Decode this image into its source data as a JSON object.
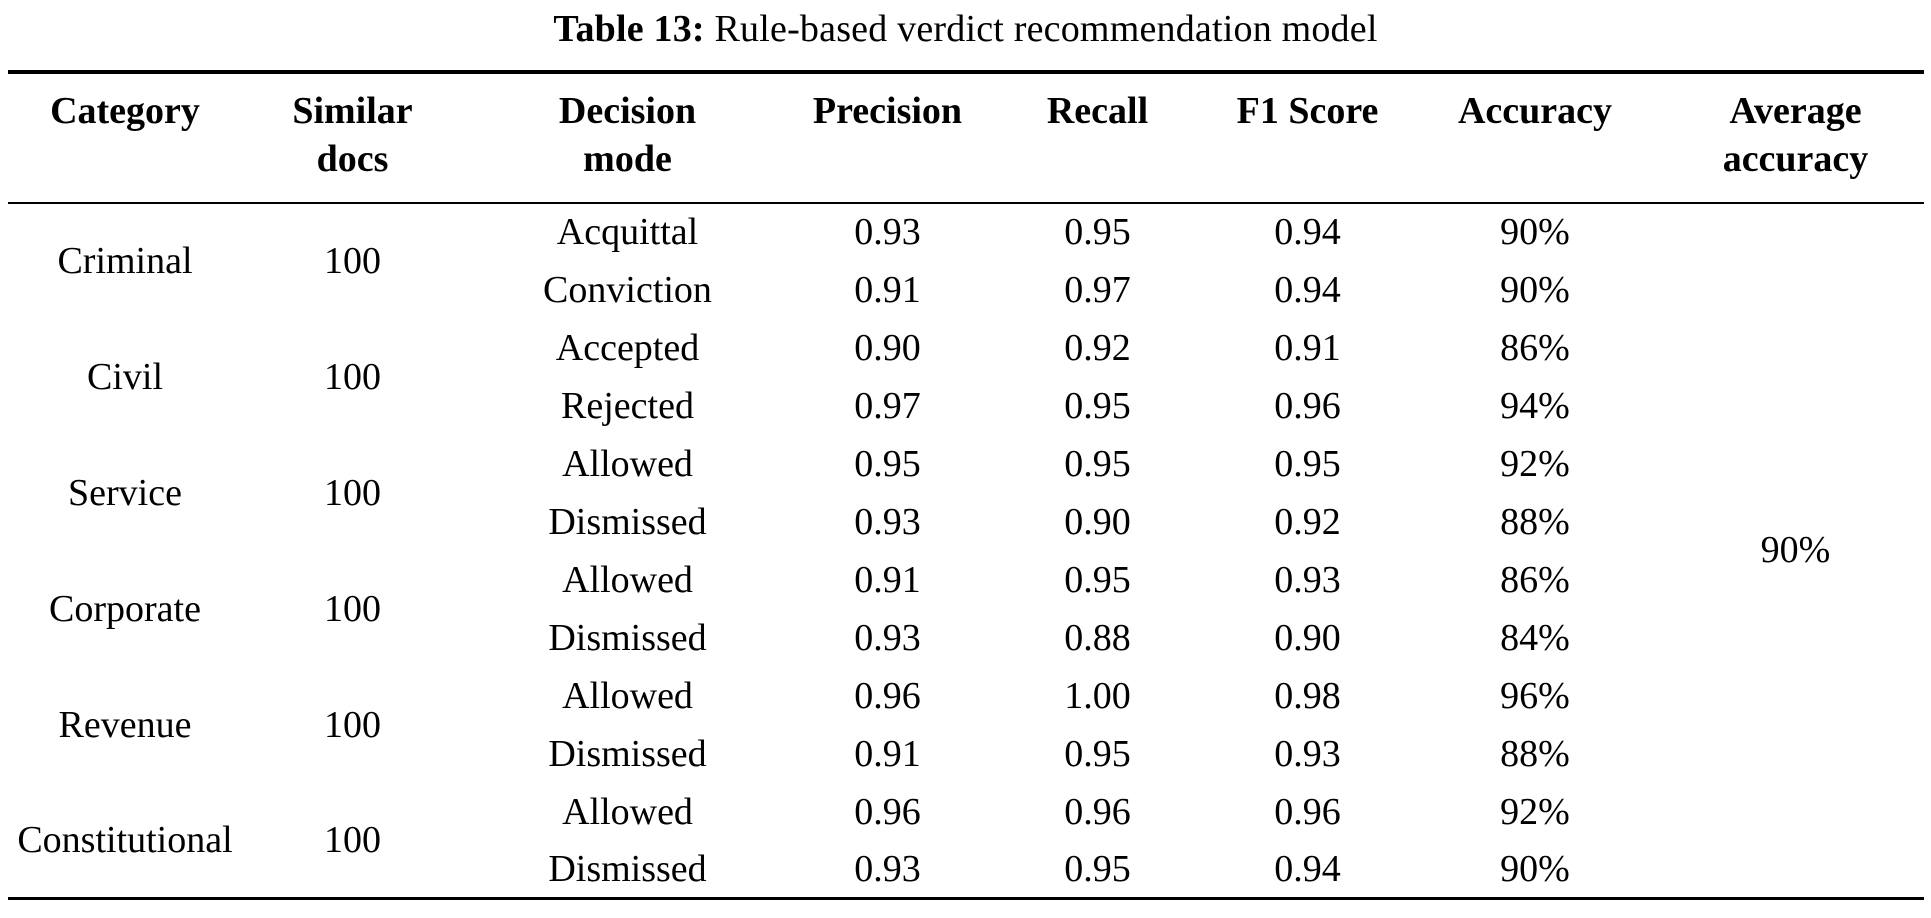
{
  "caption": {
    "label": "Table 13:",
    "text": "Rule-based verdict recommendation model"
  },
  "table": {
    "headers": [
      {
        "line1": "Category",
        "line2": ""
      },
      {
        "line1": "Similar",
        "line2": "docs"
      },
      {
        "line1": "Decision",
        "line2": "mode"
      },
      {
        "line1": "Precision",
        "line2": ""
      },
      {
        "line1": "Recall",
        "line2": ""
      },
      {
        "line1": "F1 Score",
        "line2": ""
      },
      {
        "line1": "Accuracy",
        "line2": ""
      },
      {
        "line1": "Average",
        "line2": "accuracy"
      }
    ],
    "groups": [
      {
        "category": "Criminal",
        "docs": "100",
        "rows": [
          {
            "decision": "Acquittal",
            "precision": "0.93",
            "recall": "0.95",
            "f1": "0.94",
            "accuracy": "90%"
          },
          {
            "decision": "Conviction",
            "precision": "0.91",
            "recall": "0.97",
            "f1": "0.94",
            "accuracy": "90%"
          }
        ]
      },
      {
        "category": "Civil",
        "docs": "100",
        "rows": [
          {
            "decision": "Accepted",
            "precision": "0.90",
            "recall": "0.92",
            "f1": "0.91",
            "accuracy": "86%"
          },
          {
            "decision": "Rejected",
            "precision": "0.97",
            "recall": "0.95",
            "f1": "0.96",
            "accuracy": "94%"
          }
        ]
      },
      {
        "category": "Service",
        "docs": "100",
        "rows": [
          {
            "decision": "Allowed",
            "precision": "0.95",
            "recall": "0.95",
            "f1": "0.95",
            "accuracy": "92%"
          },
          {
            "decision": "Dismissed",
            "precision": "0.93",
            "recall": "0.90",
            "f1": "0.92",
            "accuracy": "88%"
          }
        ]
      },
      {
        "category": "Corporate",
        "docs": "100",
        "rows": [
          {
            "decision": "Allowed",
            "precision": "0.91",
            "recall": "0.95",
            "f1": "0.93",
            "accuracy": "86%"
          },
          {
            "decision": "Dismissed",
            "precision": "0.93",
            "recall": "0.88",
            "f1": "0.90",
            "accuracy": "84%"
          }
        ]
      },
      {
        "category": "Revenue",
        "docs": "100",
        "rows": [
          {
            "decision": "Allowed",
            "precision": "0.96",
            "recall": "1.00",
            "f1": "0.98",
            "accuracy": "96%"
          },
          {
            "decision": "Dismissed",
            "precision": "0.91",
            "recall": "0.95",
            "f1": "0.93",
            "accuracy": "88%"
          }
        ]
      },
      {
        "category": "Constitutional",
        "docs": "100",
        "rows": [
          {
            "decision": "Allowed",
            "precision": "0.96",
            "recall": "0.96",
            "f1": "0.96",
            "accuracy": "92%"
          },
          {
            "decision": "Dismissed",
            "precision": "0.93",
            "recall": "0.95",
            "f1": "0.94",
            "accuracy": "90%"
          }
        ]
      }
    ],
    "average_accuracy": "90%"
  }
}
